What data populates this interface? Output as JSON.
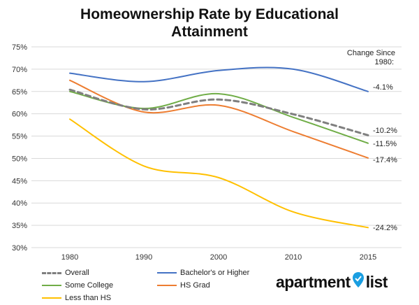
{
  "title_lines": [
    "Homeownership Rate by Educational",
    "Attainment"
  ],
  "chart_data": {
    "type": "line",
    "title": "Homeownership Rate by Educational Attainment",
    "x": [
      "1980",
      "1990",
      "2000",
      "2010",
      "2015"
    ],
    "ylim": [
      30,
      75
    ],
    "yticks": [
      "30%",
      "35%",
      "40%",
      "45%",
      "50%",
      "55%",
      "60%",
      "65%",
      "70%",
      "75%"
    ],
    "grid": true,
    "legend_position": "bottom",
    "series": [
      {
        "name": "Overall",
        "color": "#7f7f7f",
        "dashed": true,
        "values": [
          65.4,
          61.0,
          63.2,
          59.9,
          55.2
        ],
        "change": "-10.2%"
      },
      {
        "name": "Bachelor's or Higher",
        "color": "#4472c4",
        "dashed": false,
        "values": [
          69.1,
          67.2,
          69.7,
          70.0,
          65.0
        ],
        "change": "-4.1%"
      },
      {
        "name": "Some College",
        "color": "#70ad47",
        "dashed": false,
        "values": [
          65.0,
          61.2,
          64.5,
          59.2,
          53.4
        ],
        "change": "-11.5%"
      },
      {
        "name": "HS Grad",
        "color": "#ed7d31",
        "dashed": false,
        "values": [
          67.5,
          60.4,
          61.9,
          56.0,
          50.1
        ],
        "change": "-17.4%"
      },
      {
        "name": "Less than HS",
        "color": "#ffc000",
        "dashed": false,
        "values": [
          58.8,
          48.3,
          45.7,
          38.0,
          34.5
        ],
        "change": "-24.2%"
      }
    ],
    "annotation_header": [
      "Change Since",
      "1980:"
    ]
  },
  "logo": {
    "left": "apartment",
    "right": "list",
    "pin_color": "#1a9ee1"
  }
}
